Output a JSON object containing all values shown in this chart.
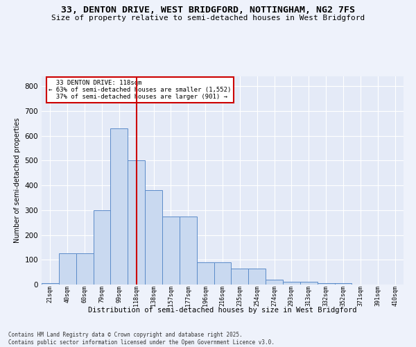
{
  "title1": "33, DENTON DRIVE, WEST BRIDGFORD, NOTTINGHAM, NG2 7FS",
  "title2": "Size of property relative to semi-detached houses in West Bridgford",
  "xlabel": "Distribution of semi-detached houses by size in West Bridgford",
  "ylabel": "Number of semi-detached properties",
  "categories": [
    "21sqm",
    "40sqm",
    "60sqm",
    "79sqm",
    "99sqm",
    "118sqm",
    "138sqm",
    "157sqm",
    "177sqm",
    "196sqm",
    "216sqm",
    "235sqm",
    "254sqm",
    "274sqm",
    "293sqm",
    "313sqm",
    "332sqm",
    "352sqm",
    "371sqm",
    "391sqm",
    "410sqm"
  ],
  "values": [
    5,
    125,
    125,
    300,
    630,
    500,
    380,
    275,
    275,
    90,
    90,
    65,
    65,
    20,
    10,
    10,
    5,
    5,
    0,
    0,
    0
  ],
  "bar_color": "#c9d9f0",
  "bar_edge_color": "#5b8bc9",
  "vline_color": "#cc0000",
  "property_label": "33 DENTON DRIVE: 118sqm",
  "pct_smaller": "63%",
  "n_smaller": "1,552",
  "pct_larger": "37%",
  "n_larger": "901",
  "annotation_box_edge": "#cc0000",
  "footer": "Contains HM Land Registry data © Crown copyright and database right 2025.\nContains public sector information licensed under the Open Government Licence v3.0.",
  "ylim": [
    0,
    840
  ],
  "bg_color": "#eef2fb",
  "plot_bg": "#e4eaf7",
  "grid_color": "#ffffff",
  "title1_fontsize": 9.5,
  "title2_fontsize": 8
}
